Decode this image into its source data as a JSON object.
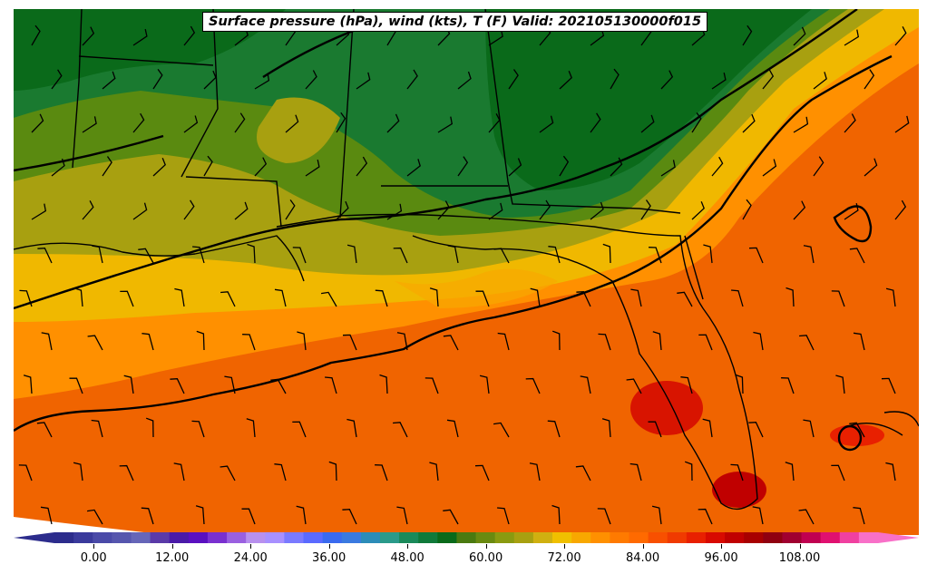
{
  "map": {
    "title": "Surface pressure (hPa), wind (kts), T (F) Valid: 202105130000f015"
  },
  "colorbar": {
    "min": -6,
    "max": 120,
    "step": 3,
    "tick_labels": [
      "0.00",
      "12.00",
      "24.00",
      "36.00",
      "48.00",
      "60.00",
      "72.00",
      "84.00",
      "96.00",
      "108.00"
    ],
    "tick_values": [
      0,
      12,
      24,
      36,
      48,
      60,
      72,
      84,
      96,
      108
    ],
    "colors": [
      "#2c2c8c",
      "#3a3a9c",
      "#4a4aa8",
      "#5656ae",
      "#6666b8",
      "#5a3aa8",
      "#4a1aa8",
      "#5a10c0",
      "#7a30d0",
      "#9a60e0",
      "#b890ee",
      "#a890ff",
      "#7a7aff",
      "#5a6aff",
      "#3a6aef",
      "#3a7ae0",
      "#2c8cb8",
      "#2a9a8a",
      "#1a8a5a",
      "#107a3a",
      "#0a6a1a",
      "#4a7a10",
      "#6a8a10",
      "#8a9a10",
      "#a8a010",
      "#d0b010",
      "#f0c000",
      "#f8a800",
      "#ff9000",
      "#ff7a00",
      "#ff6a00",
      "#f85000",
      "#f03a00",
      "#e82000",
      "#d80a00",
      "#c00000",
      "#a80000",
      "#900010",
      "#a00030",
      "#c00050",
      "#e01070",
      "#f040a0",
      "#f870c8"
    ]
  }
}
